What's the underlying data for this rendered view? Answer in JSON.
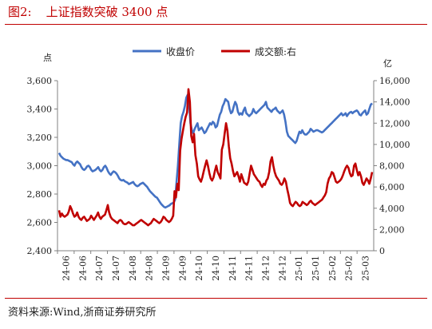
{
  "figure": {
    "label": "图2:",
    "title": "上证指数突破 3400 点",
    "source": "资料来源:Wind,浙商证券研究所"
  },
  "colors": {
    "close": "#4472c4",
    "turnover": "#c00000",
    "axis": "#808080",
    "text": "#222222"
  },
  "chart_data": {
    "type": "line",
    "left_axis": {
      "unit": "点",
      "min": 2400,
      "max": 3600,
      "ticks": [
        "2,400",
        "2,600",
        "2,800",
        "3,000",
        "3,200",
        "3,400",
        "3,600"
      ]
    },
    "right_axis": {
      "unit": "亿",
      "min": 0,
      "max": 16000,
      "ticks": [
        "0",
        "2,000",
        "4,000",
        "6,000",
        "8,000",
        "10,000",
        "12,000",
        "14,000",
        "16,000"
      ]
    },
    "x_ticks": [
      "24-06",
      "24-06",
      "24-07",
      "24-07",
      "24-08",
      "24-08",
      "24-09",
      "24-09",
      "24-10",
      "24-10",
      "24-11",
      "24-11",
      "24-12",
      "24-12",
      "25-01",
      "25-01",
      "25-02",
      "25-02",
      "25-03"
    ],
    "legend": {
      "position": "top-center"
    },
    "series": [
      {
        "name": "收盘价",
        "axis": "left",
        "values": [
          3090,
          3070,
          3060,
          3050,
          3045,
          3040,
          3040,
          3035,
          3030,
          3025,
          3010,
          3000,
          3020,
          3030,
          3020,
          3010,
          2990,
          2975,
          2970,
          2980,
          2995,
          3000,
          2990,
          2970,
          2960,
          2965,
          2970,
          2980,
          2990,
          2970,
          2960,
          2970,
          2990,
          3000,
          2985,
          2960,
          2945,
          2935,
          2950,
          2960,
          2955,
          2945,
          2930,
          2910,
          2900,
          2895,
          2900,
          2890,
          2885,
          2880,
          2870,
          2875,
          2880,
          2885,
          2870,
          2860,
          2855,
          2860,
          2870,
          2875,
          2880,
          2870,
          2860,
          2850,
          2835,
          2820,
          2810,
          2800,
          2790,
          2780,
          2775,
          2760,
          2745,
          2730,
          2720,
          2710,
          2705,
          2710,
          2715,
          2720,
          2730,
          2735,
          2740,
          2760,
          2880,
          3000,
          3150,
          3300,
          3350,
          3380,
          3420,
          3480,
          3500,
          3440,
          3300,
          3250,
          3230,
          3260,
          3280,
          3300,
          3250,
          3260,
          3270,
          3250,
          3230,
          3240,
          3260,
          3280,
          3300,
          3290,
          3310,
          3300,
          3270,
          3280,
          3320,
          3360,
          3380,
          3420,
          3440,
          3470,
          3460,
          3450,
          3400,
          3370,
          3380,
          3420,
          3450,
          3430,
          3380,
          3360,
          3370,
          3360,
          3390,
          3410,
          3370,
          3360,
          3350,
          3360,
          3370,
          3400,
          3380,
          3370,
          3380,
          3390,
          3400,
          3410,
          3420,
          3430,
          3450,
          3410,
          3400,
          3390,
          3380,
          3395,
          3400,
          3410,
          3390,
          3380,
          3370,
          3380,
          3390,
          3360,
          3310,
          3240,
          3210,
          3200,
          3190,
          3180,
          3170,
          3160,
          3175,
          3210,
          3240,
          3230,
          3250,
          3230,
          3220,
          3220,
          3230,
          3240,
          3260,
          3250,
          3240,
          3245,
          3250,
          3250,
          3245,
          3240,
          3235,
          3240,
          3250,
          3260,
          3270,
          3280,
          3290,
          3300,
          3310,
          3320,
          3330,
          3340,
          3350,
          3360,
          3370,
          3355,
          3360,
          3370,
          3350,
          3365,
          3375,
          3380,
          3370,
          3380,
          3385,
          3390,
          3380,
          3360,
          3355,
          3370,
          3380,
          3390,
          3360,
          3370,
          3400,
          3430,
          3440
        ]
      },
      {
        "name": "成交额:右",
        "axis": "right",
        "values": [
          3800,
          3200,
          3500,
          3300,
          3200,
          3300,
          3400,
          3700,
          4200,
          3900,
          3500,
          3200,
          3300,
          3600,
          3200,
          3000,
          2900,
          3100,
          3200,
          3000,
          2800,
          2900,
          3000,
          3300,
          3100,
          2900,
          3100,
          3300,
          3600,
          3200,
          3000,
          3200,
          3300,
          3400,
          3800,
          4300,
          3600,
          3200,
          3000,
          2900,
          2800,
          2700,
          2600,
          2800,
          2900,
          2800,
          2600,
          2500,
          2500,
          2600,
          2700,
          2600,
          2500,
          2400,
          2400,
          2500,
          2600,
          2700,
          2800,
          2900,
          2800,
          2700,
          2600,
          2500,
          2400,
          2500,
          2600,
          2800,
          3000,
          2900,
          2800,
          2700,
          2600,
          2700,
          2900,
          3200,
          3100,
          2900,
          2800,
          2700,
          2800,
          3000,
          3300,
          5600,
          5000,
          6300,
          5700,
          9400,
          10500,
          11300,
          12000,
          12600,
          13000,
          15200,
          14000,
          10800,
          10200,
          11000,
          9000,
          8200,
          7000,
          6700,
          6500,
          6900,
          7500,
          8000,
          8500,
          8000,
          7300,
          6800,
          6600,
          6900,
          7500,
          8000,
          7400,
          7100,
          6800,
          9500,
          10000,
          11000,
          12000,
          11300,
          9800,
          8700,
          8200,
          7500,
          7000,
          7200,
          7400,
          7000,
          6500,
          7200,
          6800,
          6400,
          6300,
          6200,
          6500,
          7300,
          8000,
          7600,
          7200,
          7000,
          6800,
          6600,
          6500,
          6200,
          6000,
          6300,
          6200,
          6600,
          6800,
          7400,
          8400,
          8800,
          8000,
          7400,
          7000,
          6800,
          6600,
          6300,
          6200,
          6400,
          6800,
          6500,
          5800,
          5200,
          4500,
          4300,
          4200,
          4400,
          4600,
          4500,
          4300,
          4200,
          4300,
          4600,
          4500,
          4400,
          4300,
          4400,
          4600,
          4700,
          4500,
          4400,
          4300,
          4400,
          4500,
          4600,
          4700,
          4800,
          5000,
          5200,
          5500,
          6300,
          6800,
          7000,
          7400,
          7300,
          6900,
          6500,
          6400,
          6500,
          6600,
          6800,
          7100,
          7500,
          7800,
          8000,
          7800,
          7300,
          7000,
          7100,
          8000,
          8200,
          7600,
          7100,
          7400,
          7000,
          6400,
          6200,
          6500,
          6800,
          6600,
          6300,
          6800,
          7400
        ]
      }
    ]
  }
}
